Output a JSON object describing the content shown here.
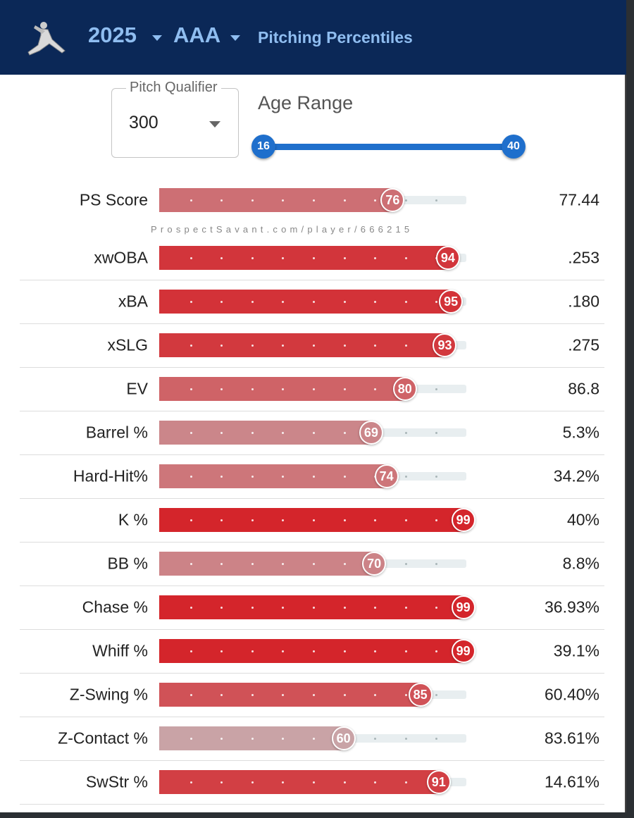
{
  "header": {
    "year": "2025",
    "level": "AAA",
    "title": "Pitching Percentiles",
    "logo_icon": "pitcher-silhouette-icon"
  },
  "controls": {
    "qualifier_label": "Pitch Qualifier",
    "qualifier_value": "300",
    "age_label": "Age Range",
    "age_min": "16",
    "age_max": "40"
  },
  "watermark": "ProspectSavant.com/player/666215",
  "score": {
    "label": "PS Score",
    "percentile": 76,
    "value": "77.44"
  },
  "metrics": [
    {
      "label": "xwOBA",
      "percentile": 94,
      "value": ".253"
    },
    {
      "label": "xBA",
      "percentile": 95,
      "value": ".180"
    },
    {
      "label": "xSLG",
      "percentile": 93,
      "value": ".275"
    },
    {
      "label": "EV",
      "percentile": 80,
      "value": "86.8"
    },
    {
      "label": "Barrel %",
      "percentile": 69,
      "value": "5.3%"
    },
    {
      "label": "Hard-Hit%",
      "percentile": 74,
      "value": "34.2%"
    },
    {
      "label": "K %",
      "percentile": 99,
      "value": "40%"
    },
    {
      "label": "BB %",
      "percentile": 70,
      "value": "8.8%"
    },
    {
      "label": "Chase %",
      "percentile": 99,
      "value": "36.93%"
    },
    {
      "label": "Whiff %",
      "percentile": 99,
      "value": "39.1%"
    },
    {
      "label": "Z-Swing %",
      "percentile": 85,
      "value": "60.40%"
    },
    {
      "label": "Z-Contact %",
      "percentile": 60,
      "value": "83.61%"
    },
    {
      "label": "SwStr %",
      "percentile": 91,
      "value": "14.61%"
    }
  ],
  "colors": {
    "header_bg": "#0b2857",
    "accent": "#1f6fcc",
    "high": "#d42228",
    "mid": "#c9a3a6"
  }
}
